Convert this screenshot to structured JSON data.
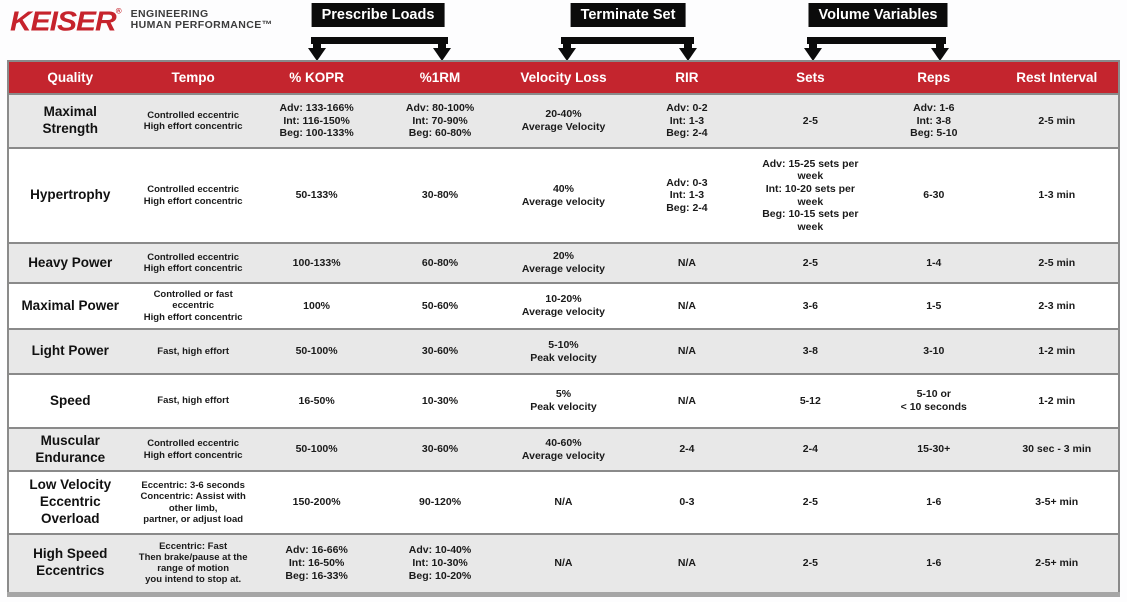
{
  "logo": {
    "brand": "KEISER",
    "registered_mark": "®",
    "tagline_line1": "ENGINEERING",
    "tagline_line2": "HUMAN PERFORMANCE™"
  },
  "callouts": [
    {
      "label": "Prescribe Loads"
    },
    {
      "label": "Terminate Set"
    },
    {
      "label": "Volume Variables"
    }
  ],
  "colors": {
    "header_red": "#c4252e",
    "logo_red": "#c6232c",
    "row_alt_gray": "#e8e8e8",
    "border_gray": "#8a8a8a",
    "callout_black": "#0b0b0b"
  },
  "table": {
    "columns": [
      "Quality",
      "Tempo",
      "% KOPR",
      "%1RM",
      "Velocity Loss",
      "RIR",
      "Sets",
      "Reps",
      "Rest Interval"
    ],
    "rows": [
      {
        "quality": "Maximal\nStrength",
        "tempo": "Controlled eccentric\nHigh effort concentric",
        "kopr": "Adv: 133-166%\nInt: 116-150%\nBeg: 100-133%",
        "rm": "Adv: 80-100%\nInt: 70-90%\nBeg: 60-80%",
        "velocity_loss": "20-40%\nAverage Velocity",
        "rir": "Adv: 0-2\nInt: 1-3\nBeg: 2-4",
        "sets": "2-5",
        "reps": "Adv: 1-6\nInt: 3-8\nBeg: 5-10",
        "rest": "2-5 min"
      },
      {
        "quality": "Hypertrophy",
        "tempo": "Controlled eccentric\nHigh effort concentric",
        "kopr": "50-133%",
        "rm": "30-80%",
        "velocity_loss": "40%\nAverage velocity",
        "rir": "Adv: 0-3\nInt: 1-3\nBeg: 2-4",
        "sets": "Adv: 15-25 sets per\nweek\nInt: 10-20 sets per\nweek\nBeg: 10-15 sets per\nweek",
        "reps": "6-30",
        "rest": "1-3 min"
      },
      {
        "quality": "Heavy Power",
        "tempo": "Controlled eccentric\nHigh effort concentric",
        "kopr": "100-133%",
        "rm": "60-80%",
        "velocity_loss": "20%\nAverage velocity",
        "rir": "N/A",
        "sets": "2-5",
        "reps": "1-4",
        "rest": "2-5 min"
      },
      {
        "quality": "Maximal Power",
        "tempo": "Controlled or fast\neccentric\nHigh effort concentric",
        "kopr": "100%",
        "rm": "50-60%",
        "velocity_loss": "10-20%\nAverage velocity",
        "rir": "N/A",
        "sets": "3-6",
        "reps": "1-5",
        "rest": "2-3 min"
      },
      {
        "quality": "Light Power",
        "tempo": "Fast, high effort",
        "kopr": "50-100%",
        "rm": "30-60%",
        "velocity_loss": "5-10%\nPeak velocity",
        "rir": "N/A",
        "sets": "3-8",
        "reps": "3-10",
        "rest": "1-2 min"
      },
      {
        "quality": "Speed",
        "tempo": "Fast, high effort",
        "kopr": "16-50%",
        "rm": "10-30%",
        "velocity_loss": "5%\nPeak velocity",
        "rir": "N/A",
        "sets": "5-12",
        "reps": "5-10 or\n< 10 seconds",
        "rest": "1-2 min"
      },
      {
        "quality": "Muscular\nEndurance",
        "tempo": "Controlled eccentric\nHigh effort concentric",
        "kopr": "50-100%",
        "rm": "30-60%",
        "velocity_loss": "40-60%\nAverage velocity",
        "rir": "2-4",
        "sets": "2-4",
        "reps": "15-30+",
        "rest": "30 sec - 3 min"
      },
      {
        "quality": "Low Velocity\nEccentric\nOverload",
        "tempo": "Eccentric: 3-6 seconds\nConcentric: Assist with\nother limb,\npartner, or adjust load",
        "kopr": "150-200%",
        "rm": "90-120%",
        "velocity_loss": "N/A",
        "rir": "0-3",
        "sets": "2-5",
        "reps": "1-6",
        "rest": "3-5+ min"
      },
      {
        "quality": "High Speed\nEccentrics",
        "tempo": "Eccentric: Fast\nThen brake/pause at the\nrange of motion\nyou intend to stop at.",
        "kopr": "Adv: 16-66%\nInt: 16-50%\nBeg: 16-33%",
        "rm": "Adv: 10-40%\nInt: 10-30%\nBeg: 10-20%",
        "velocity_loss": "N/A",
        "rir": "N/A",
        "sets": "2-5",
        "reps": "1-6",
        "rest": "2-5+ min"
      }
    ]
  }
}
